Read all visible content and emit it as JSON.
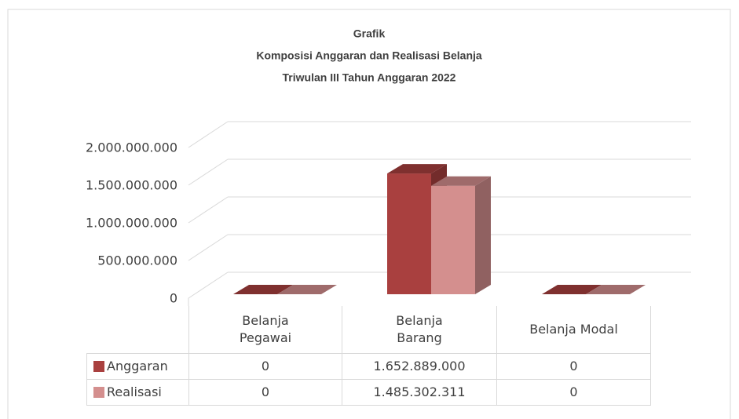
{
  "chart_data": {
    "type": "bar3d",
    "title": [
      "Grafik",
      "Komposisi Anggaran dan Realisasi Belanja",
      "Triwulan III Tahun Anggaran 2022"
    ],
    "categories": [
      "Belanja Pegawai",
      "Belanja Barang",
      "Belanja Modal"
    ],
    "series": [
      {
        "name": "Anggaran",
        "color": "#a9403f",
        "values": [
          0,
          1652889000,
          0
        ],
        "value_labels": [
          "0",
          "1.652.889.000",
          "0"
        ]
      },
      {
        "name": "Realisasi",
        "color": "#d48f8e",
        "values": [
          0,
          1485302311,
          0
        ],
        "value_labels": [
          "0",
          "1.485.302.311",
          "0"
        ]
      }
    ],
    "ylim": [
      0,
      2000000000
    ],
    "yticks": [
      0,
      {
        "value": 500000000,
        "label": "500.000.000"
      },
      {
        "value": 1000000000,
        "label": "1.000.000.000"
      },
      {
        "value": 1500000000,
        "label": "1.500.000.000"
      },
      {
        "value": 2000000000,
        "label": "2.000.000.000"
      }
    ],
    "grid": true
  }
}
